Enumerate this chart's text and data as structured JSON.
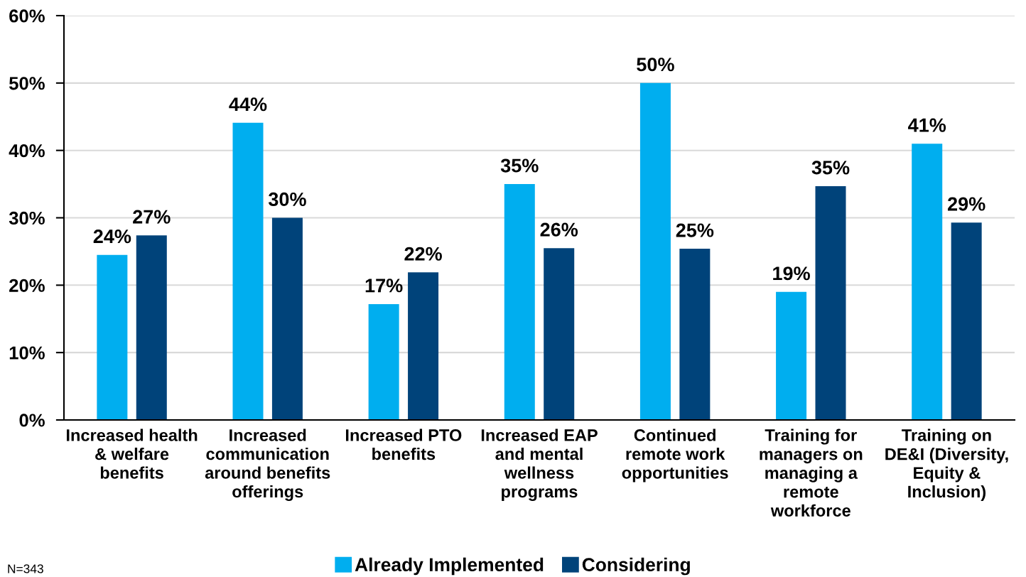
{
  "chart_data": {
    "type": "bar",
    "categories": [
      "Increased health\n& welfare\nbenefits",
      "Increased\ncommunication\naround benefits\nofferings",
      "Increased PTO\nbenefits",
      "Increased EAP\nand mental\nwellness\nprograms",
      "Continued\nremote work\nopportunities",
      "Training for\nmanagers on\nmanaging a\nremote\nworkforce",
      "Training on\nDE&I (Diversity,\nEquity &\nInclusion)"
    ],
    "series": [
      {
        "name": "Already Implemented",
        "color": "#00aeef",
        "values": [
          24.5,
          44.1,
          17.2,
          35.0,
          50.0,
          19.0,
          41.0
        ],
        "value_labels": [
          "24%",
          "44%",
          "17%",
          "35%",
          "50%",
          "19%",
          "41%"
        ]
      },
      {
        "name": "Considering",
        "color": "#00437a",
        "values": [
          27.4,
          30.0,
          21.9,
          25.5,
          25.4,
          34.7,
          29.3
        ],
        "value_labels": [
          "27%",
          "30%",
          "22%",
          "26%",
          "25%",
          "35%",
          "29%"
        ]
      }
    ],
    "ylim": [
      0,
      60
    ],
    "yticks": [
      {
        "value": 0,
        "label": "0%"
      },
      {
        "value": 10,
        "label": "10%"
      },
      {
        "value": 20,
        "label": "20%"
      },
      {
        "value": 30,
        "label": "30%"
      },
      {
        "value": 40,
        "label": "40%"
      },
      {
        "value": 50,
        "label": "50%"
      },
      {
        "value": 60,
        "label": "60%"
      }
    ],
    "grid": "y",
    "legend": "bottom",
    "annotations": [
      "N=343"
    ]
  }
}
